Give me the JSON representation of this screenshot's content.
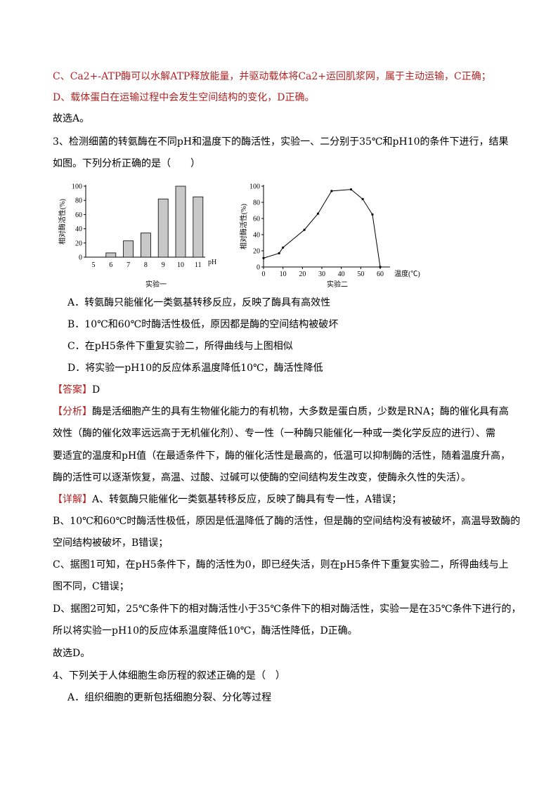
{
  "lines": [
    {
      "text": "C、Ca2+-ATP酶可以水解ATP释放能量，并驱动载体将Ca2+运回肌浆网，属于主动运输，C正确；"
    },
    {
      "text": "D、载体蛋白在运输过程中会发生空间结构的变化，D正确。"
    },
    {
      "text": "故选A。"
    },
    {
      "text": "3、检测细菌的转氨酶在不同pH和温度下的酶活性，实验一、二分别于35℃和pH10的条件下进行，结果"
    },
    {
      "text": "如图。下列分析正确的是（　　）"
    },
    {
      "text": "A．转氨酶只能催化一类氨基转移反应，反映了酶具有高效性"
    },
    {
      "text": "B．10℃和60℃时酶活性极低，原因都是酶的空间结构被破坏"
    },
    {
      "text": "C．在pH5条件下重复实验二，所得曲线与上图相似"
    },
    {
      "text": "D．将实验一pH10的反应体系温度降低10℃，酶活性降低"
    },
    {
      "label": "【答案】",
      "text": "D"
    },
    {
      "label": "【分析】",
      "text": "酶是活细胞产生的具有生物催化能力的有机物，大多数是蛋白质，少数是RNA；酶的催化具有高"
    },
    {
      "text": "效性（酶的催化效率远远高于无机催化剂）、专一性（一种酶只能催化一种或一类化学反应的进行）、需"
    },
    {
      "text": "要适宜的温度和pH值（在最适条件下，酶的催化活性是最高的，低温可以抑制酶的活性，随着温度升高，"
    },
    {
      "text": "酶的活性可以逐渐恢复，高温、过酸、过碱可以使酶的空间结构发生改变，使酶永久性的失活）。"
    },
    {
      "label": "【详解】",
      "text": "A、转氨酶只能催化一类氨基转移反应，反映了酶具有专一性，A错误；"
    },
    {
      "text": "B、10℃和60℃时酶活性极低，原因是低温降低了酶的活性，但是酶的空间结构没有被破坏，高温导致酶的"
    },
    {
      "text": "空间结构被破坏，B错误；"
    },
    {
      "text": "C、据图1可知，在pH5条件下，酶的活性为0，即已经失活，则在pH5条件下重复实验二，所得曲线与上"
    },
    {
      "text": "图不同，C错误；"
    },
    {
      "text": "D、据图2可知，25℃条件下的相对酶活性小于35℃条件下的相对酶活性，实验一是在35℃条件下进行的，"
    },
    {
      "text": "所以将实验一pH10的反应体系温度降低10℃，酶活性降低，D正确。"
    },
    {
      "text": "故选D。"
    },
    {
      "text": "4、下列关于人体细胞生命历程的叙述正确的是（　）"
    },
    {
      "text": "A．组织细胞的更新包括细胞分裂、分化等过程"
    }
  ],
  "chart_data": [
    {
      "type": "bar",
      "title": "实验一",
      "xlabel": "pH",
      "ylabel": "相对酶活性(%)",
      "categories": [
        "5",
        "6",
        "7",
        "8",
        "9",
        "10",
        "11"
      ],
      "values": [
        0,
        6,
        23,
        34,
        82,
        100,
        85
      ],
      "color": "#c8c8c8",
      "ylim": [
        0,
        100
      ],
      "yticks": [
        0,
        20,
        40,
        60,
        80,
        100
      ]
    },
    {
      "type": "line",
      "title": "实验二",
      "xlabel": "温度(℃)",
      "ylabel": "相对酶活性(%)",
      "x": [
        0,
        8,
        10,
        21,
        28,
        35,
        45,
        51,
        56,
        60
      ],
      "values": [
        11,
        17,
        24,
        46,
        66,
        94,
        96,
        84,
        65,
        0
      ],
      "color": "#000000",
      "xlim": [
        0,
        60
      ],
      "xticks": [
        0,
        10,
        20,
        30,
        40,
        50,
        60
      ],
      "ylim": [
        0,
        100
      ],
      "yticks": [
        0,
        20,
        40,
        60,
        80,
        100
      ]
    }
  ]
}
